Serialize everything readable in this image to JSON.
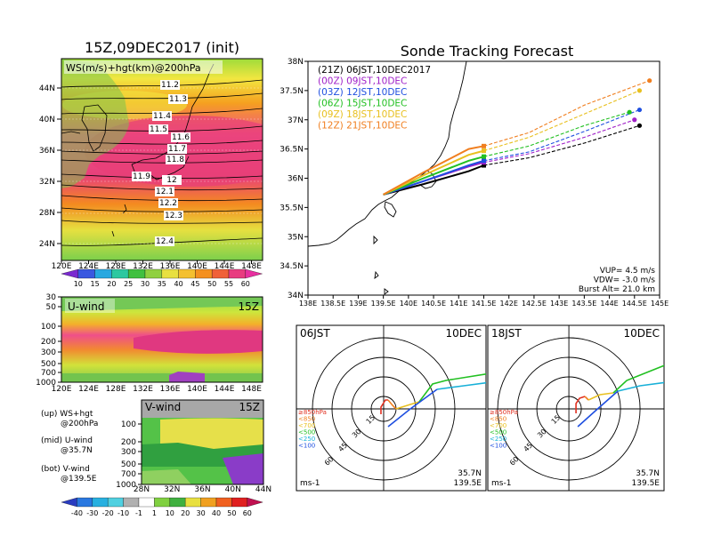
{
  "left": {
    "title": "15Z,09DEC2017 (init)",
    "map_label": "WS(m/s)+hgt(km)@200hPa",
    "lat_ticks": [
      "44N",
      "40N",
      "36N",
      "32N",
      "28N",
      "24N"
    ],
    "lon_ticks": [
      "120E",
      "124E",
      "128E",
      "132E",
      "136E",
      "140E",
      "144E",
      "148E"
    ],
    "contours": [
      "11.2",
      "11.3",
      "11.4",
      "11.5",
      "11.6",
      "11.7",
      "11.8",
      "11.9",
      "12",
      "12.1",
      "12.2",
      "12.3",
      "12.4"
    ],
    "ws_colorbar": [
      "10",
      "15",
      "20",
      "25",
      "30",
      "35",
      "40",
      "45",
      "50",
      "55",
      "60"
    ],
    "uwind_label": "U-wind",
    "uwind_time": "15Z",
    "vwind_label": "V-wind",
    "vwind_time": "15Z",
    "p_ticks": [
      "30",
      "50",
      "100",
      "200",
      "300",
      "500",
      "700",
      "1000"
    ],
    "vwind_p_ticks": [
      "100",
      "200",
      "300",
      "500",
      "700",
      "1000"
    ],
    "vwind_lat_ticks": [
      "28N",
      "32N",
      "36N",
      "40N",
      "44N"
    ],
    "notes": [
      "(up) WS+hgt",
      "@200hPa",
      "(mid) U-wind",
      "@35.7N",
      "(bot) V-wind",
      "@139.5E"
    ],
    "v_colorbar": [
      "-40",
      "-30",
      "-20",
      "-10",
      "-1",
      "1",
      "10",
      "20",
      "30",
      "40",
      "50",
      "60"
    ]
  },
  "right": {
    "title": "Sonde Tracking Forecast",
    "legend": [
      {
        "text": "(21Z) 06JST,10DEC2017",
        "color": "#000000"
      },
      {
        "text": "(00Z) 09JST,10DEC",
        "color": "#a020c8"
      },
      {
        "text": "(03Z) 12JST,10DEC",
        "color": "#1f4fe0"
      },
      {
        "text": "(06Z) 15JST,10DEC",
        "color": "#22c022"
      },
      {
        "text": "(09Z) 18JST,10DEC",
        "color": "#e8c020"
      },
      {
        "text": "(12Z) 21JST,10DEC",
        "color": "#f07f20"
      }
    ],
    "lat_ticks": [
      "38N",
      "37.5N",
      "37N",
      "36.5N",
      "36N",
      "35.5N",
      "35N",
      "34.5N",
      "34N"
    ],
    "lon_ticks": [
      "138E",
      "138.5E",
      "139E",
      "139.5E",
      "140E",
      "140.5E",
      "141E",
      "141.5E",
      "142E",
      "142.5E",
      "143E",
      "143.5E",
      "144E",
      "144.5E",
      "145E"
    ],
    "params": [
      "VUP= 4.5 m/s",
      "VDW= -3.0 m/s",
      "Burst Alt= 21.0 km"
    ]
  },
  "hodo1": {
    "time": "06JST",
    "date": "10DEC",
    "lat": "35.7N",
    "lon": "139.5E",
    "unit": "ms-1",
    "rings": [
      "15",
      "30",
      "45",
      "60"
    ]
  },
  "hodo2": {
    "time": "18JST",
    "date": "10DEC",
    "lat": "35.7N",
    "lon": "139.5E",
    "unit": "ms-1",
    "rings": [
      "15",
      "30",
      "45",
      "60"
    ]
  },
  "hodo_legend": [
    {
      "text": "≥850hPa",
      "color": "#e03020"
    },
    {
      "text": "<850",
      "color": "#f07f20"
    },
    {
      "text": "<700",
      "color": "#e8c020"
    },
    {
      "text": "<500",
      "color": "#22c022"
    },
    {
      "text": "<250",
      "color": "#18b0d8"
    },
    {
      "text": "<100",
      "color": "#1f4fe0"
    }
  ],
  "chart_data": [
    {
      "type": "line",
      "title": "Sonde Tracking Forecast",
      "x_range": [
        138,
        145
      ],
      "y_range": [
        34,
        38
      ],
      "start": [
        139.5,
        35.72
      ],
      "series": [
        {
          "name": "(21Z) 06JST,10DEC2017",
          "color": "#000000",
          "points": [
            [
              139.5,
              35.72
            ],
            [
              140.3,
              35.9
            ],
            [
              141.2,
              36.12
            ],
            [
              141.5,
              36.22
            ],
            [
              142.4,
              36.35
            ],
            [
              143.5,
              36.6
            ],
            [
              144.6,
              36.9
            ]
          ]
        },
        {
          "name": "(00Z) 09JST,10DEC",
          "color": "#a020c8",
          "points": [
            [
              139.5,
              35.72
            ],
            [
              140.3,
              35.95
            ],
            [
              141.2,
              36.2
            ],
            [
              141.5,
              36.27
            ],
            [
              142.4,
              36.42
            ],
            [
              143.5,
              36.7
            ],
            [
              144.5,
              37.0
            ]
          ]
        },
        {
          "name": "(03Z) 12JST,10DEC",
          "color": "#1f4fe0",
          "points": [
            [
              139.5,
              35.72
            ],
            [
              140.3,
              35.95
            ],
            [
              141.2,
              36.22
            ],
            [
              141.5,
              36.3
            ],
            [
              142.4,
              36.45
            ],
            [
              143.5,
              36.8
            ],
            [
              144.6,
              37.17
            ]
          ]
        },
        {
          "name": "(06Z) 15JST,10DEC",
          "color": "#22c022",
          "points": [
            [
              139.5,
              35.72
            ],
            [
              140.3,
              36.0
            ],
            [
              141.2,
              36.3
            ],
            [
              141.5,
              36.37
            ],
            [
              142.4,
              36.55
            ],
            [
              143.5,
              36.9
            ],
            [
              144.4,
              37.13
            ]
          ]
        },
        {
          "name": "(09Z) 18JST,10DEC",
          "color": "#e8c020",
          "points": [
            [
              139.5,
              35.72
            ],
            [
              140.3,
              36.05
            ],
            [
              141.2,
              36.4
            ],
            [
              141.5,
              36.47
            ],
            [
              142.4,
              36.7
            ],
            [
              143.5,
              37.1
            ],
            [
              144.6,
              37.5
            ]
          ]
        },
        {
          "name": "(12Z) 21JST,10DEC",
          "color": "#f07f20",
          "points": [
            [
              139.5,
              35.72
            ],
            [
              140.3,
              36.1
            ],
            [
              141.2,
              36.5
            ],
            [
              141.5,
              36.55
            ],
            [
              142.4,
              36.78
            ],
            [
              143.5,
              37.25
            ],
            [
              144.8,
              37.67
            ]
          ]
        }
      ]
    }
  ]
}
